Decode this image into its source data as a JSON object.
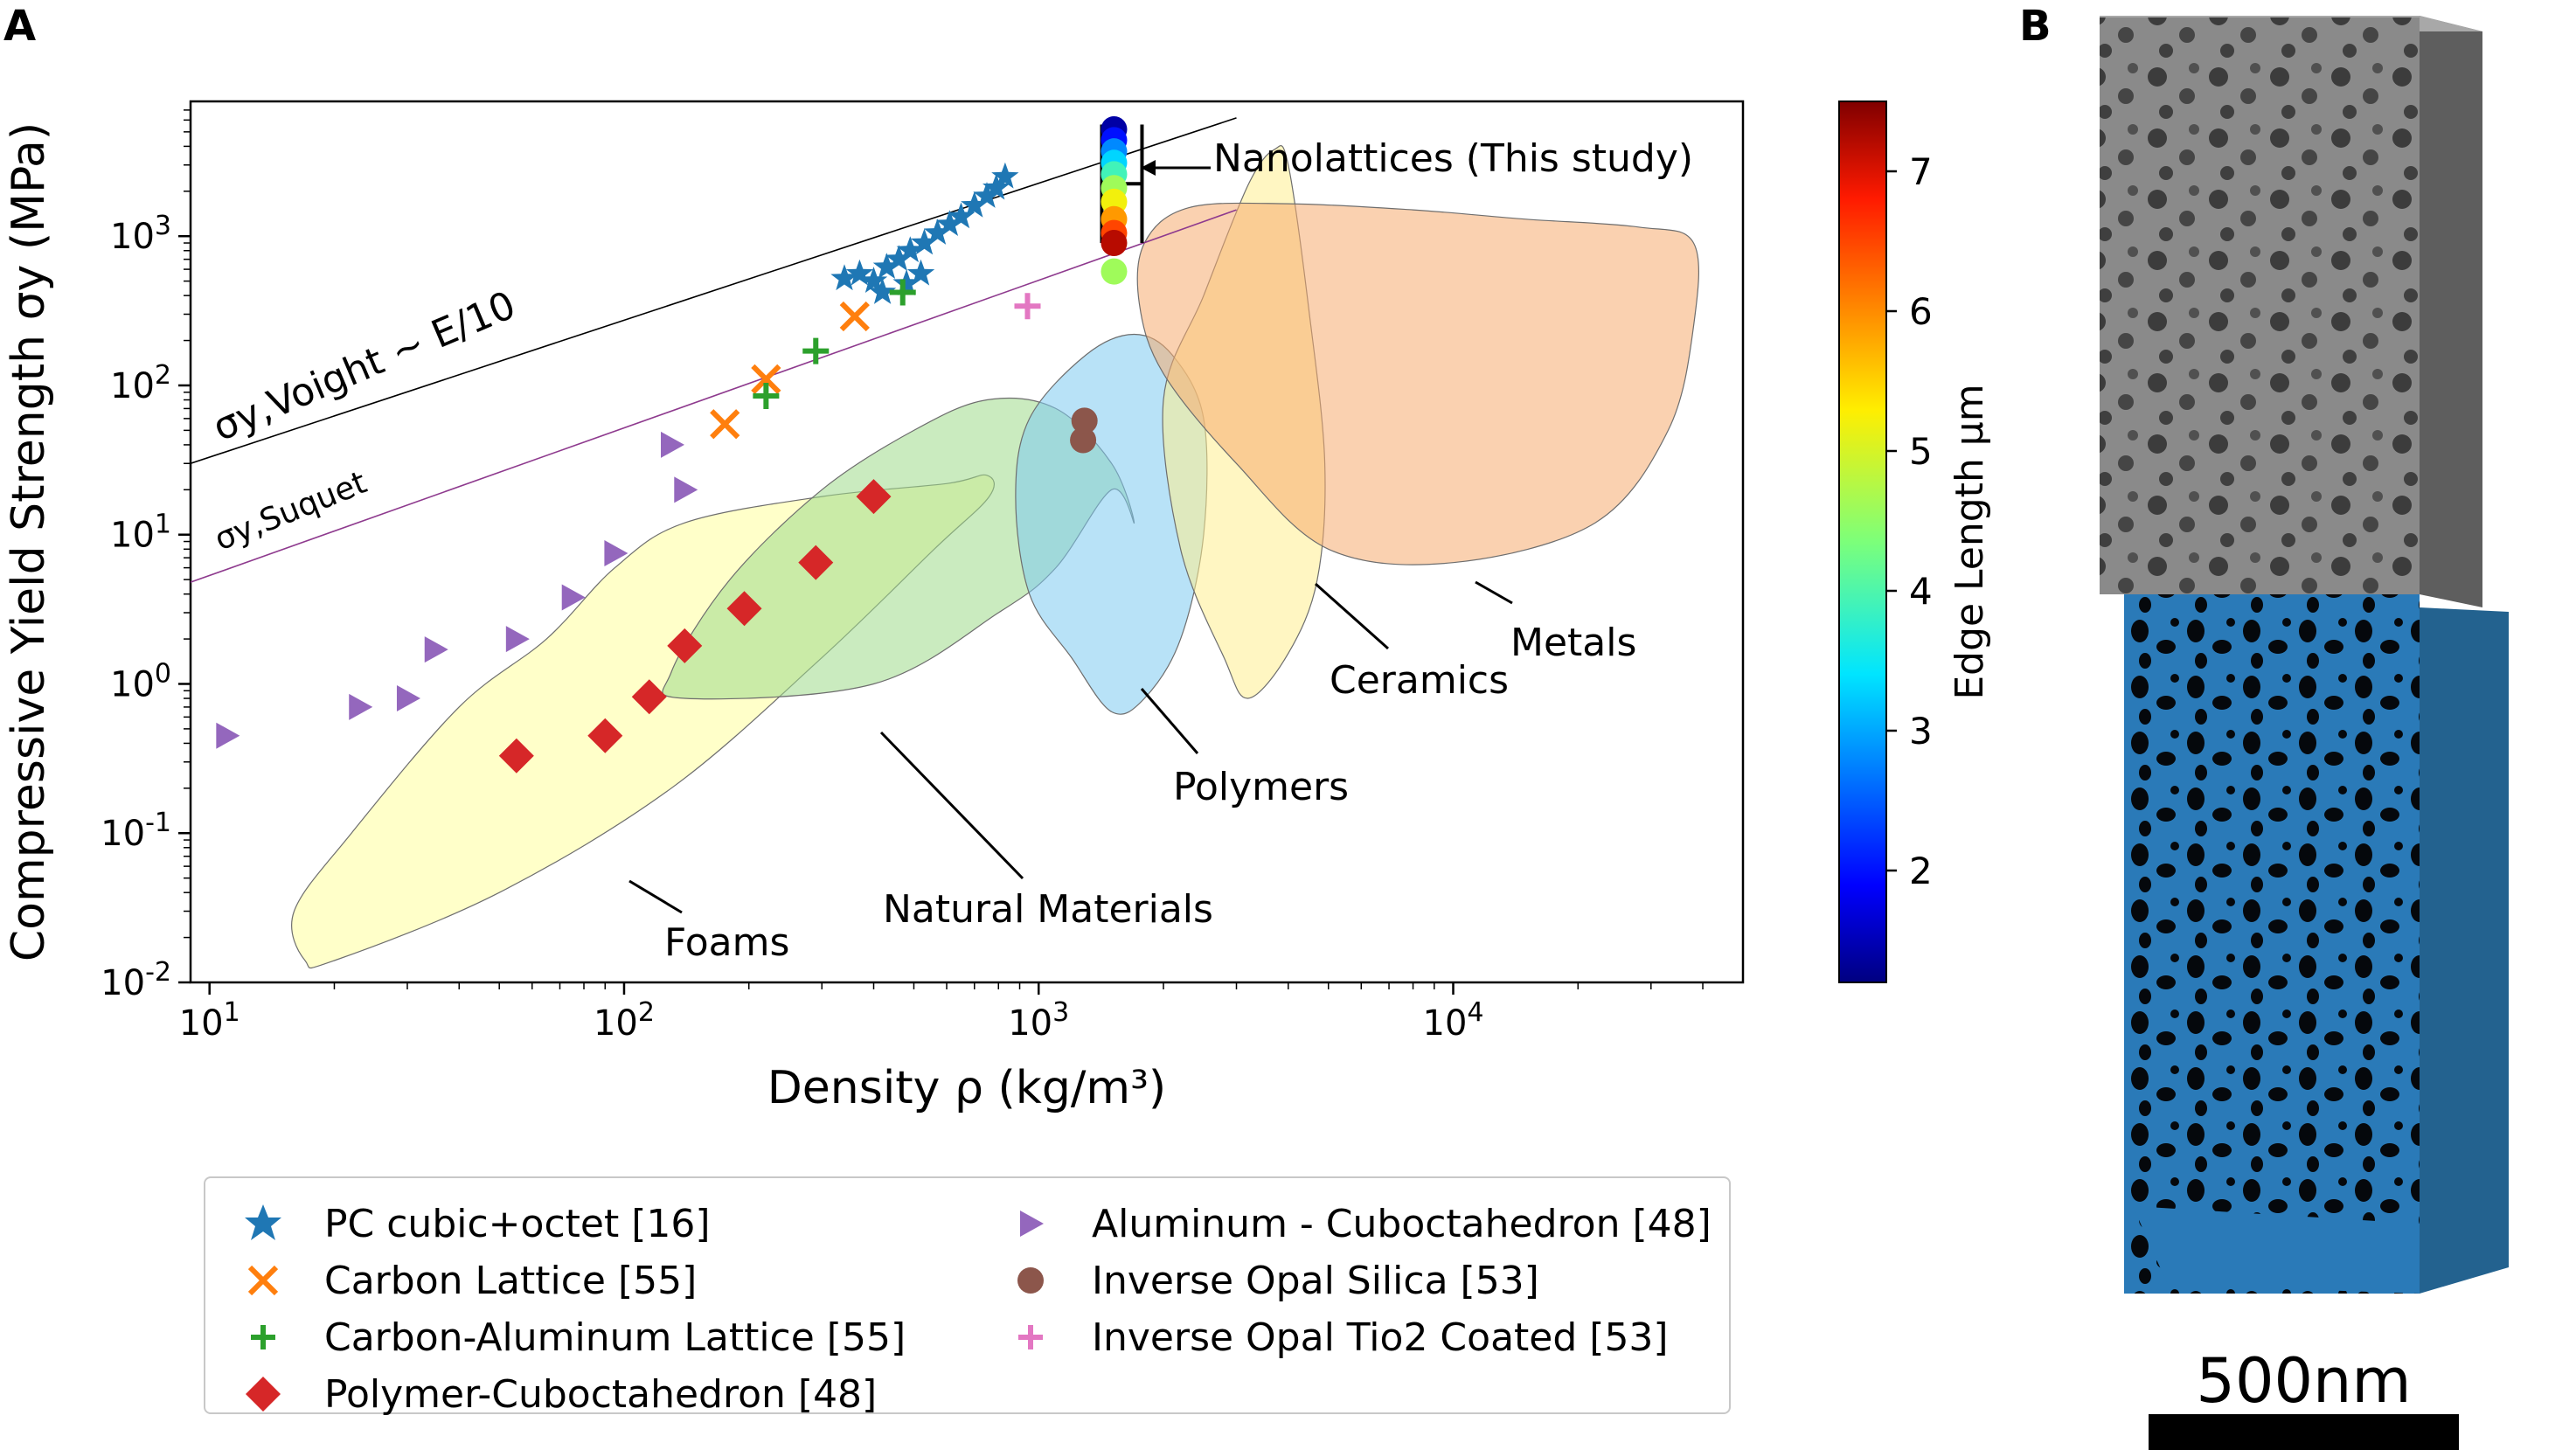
{
  "panels": {
    "a": "A",
    "b": "B"
  },
  "chart_data": {
    "type": "scatter",
    "xlabel": "Density ρ (kg/m³)",
    "ylabel": "Compressive Yield Strength σy (MPa)",
    "xscale": "log",
    "yscale": "log",
    "xlim": [
      9,
      50000
    ],
    "ylim": [
      0.01,
      8000
    ],
    "xticks": [
      10,
      100,
      1000,
      10000
    ],
    "yticks": [
      0.01,
      0.1,
      1,
      10,
      100,
      1000
    ],
    "grid": false,
    "legend_position": "below",
    "series": [
      {
        "name": "PC cubic+octet [16]",
        "marker": "star",
        "color": "#1f77b4",
        "x": [
          340,
          370,
          400,
          430,
          460,
          490,
          530,
          570,
          610,
          650,
          700,
          750,
          790,
          830,
          420,
          480,
          520
        ],
        "y": [
          520,
          560,
          500,
          620,
          700,
          800,
          900,
          1050,
          1200,
          1350,
          1600,
          1850,
          2100,
          2500,
          420,
          480,
          560
        ]
      },
      {
        "name": "Carbon Lattice [55]",
        "marker": "x",
        "color": "#ff7f0e",
        "x": [
          175,
          220,
          360
        ],
        "y": [
          55,
          110,
          290
        ]
      },
      {
        "name": "Carbon-Aluminum Lattice [55]",
        "marker": "plus",
        "color": "#2ca02c",
        "x": [
          220,
          290,
          470
        ],
        "y": [
          85,
          170,
          420
        ]
      },
      {
        "name": "Polymer-Cuboctahedron [48]",
        "marker": "diamond",
        "color": "#d62728",
        "x": [
          55,
          90,
          115,
          140,
          195,
          290,
          400
        ],
        "y": [
          0.33,
          0.45,
          0.82,
          1.8,
          3.2,
          6.5,
          18
        ]
      },
      {
        "name": "Aluminum - Cuboctahedron [48]",
        "marker": "triangle-right",
        "color": "#9467bd",
        "x": [
          11,
          23,
          30,
          35,
          55,
          75,
          95,
          130,
          140
        ],
        "y": [
          0.45,
          0.7,
          0.8,
          1.7,
          2.0,
          3.8,
          7.5,
          40,
          20
        ]
      },
      {
        "name": "Inverse Opal Silica [53]",
        "marker": "circle",
        "color": "#8c564b",
        "x": [
          1280,
          1290
        ],
        "y": [
          43,
          58
        ]
      },
      {
        "name": "Inverse Opal Tio2 Coated [53]",
        "marker": "plus",
        "color": "#e377c2",
        "x": [
          940
        ],
        "y": [
          340
        ]
      }
    ],
    "nanolattices": {
      "x": 1520,
      "y": [
        5200,
        4400,
        3700,
        3100,
        2600,
        2100,
        1700,
        1300,
        1050,
        900,
        580
      ],
      "edge_length": [
        1.4,
        2.0,
        2.8,
        3.3,
        3.9,
        4.6,
        5.2,
        5.9,
        6.5,
        7.2,
        4.6
      ],
      "error_bar": [
        900,
        5600
      ]
    },
    "colorbar": {
      "label": "Edge Length μm",
      "min": 1.2,
      "max": 7.5,
      "ticks": [
        2,
        3,
        4,
        5,
        6,
        7
      ]
    },
    "annotations": {
      "voight": "σy,Voight ~ E/10",
      "suquet": "σy,Suquet",
      "nanolattices": "Nanolattices (This study)",
      "metals": "Metals",
      "ceramics": "Ceramics",
      "polymers": "Polymers",
      "natural": "Natural Materials",
      "foams": "Foams"
    },
    "reference_lines": [
      {
        "name": "voight",
        "x": [
          9,
          3000
        ],
        "y": [
          30,
          6200
        ],
        "color": "#000000"
      },
      {
        "name": "suquet",
        "x": [
          9,
          3000
        ],
        "y": [
          4.8,
          1500
        ],
        "color": "#8e3a8e"
      }
    ],
    "regions": [
      {
        "name": "foams",
        "color": "#ffff9c",
        "pts": [
          [
            17,
            0.014
          ],
          [
            20,
            0.014
          ],
          [
            50,
            0.04
          ],
          [
            130,
            0.2
          ],
          [
            300,
            1.5
          ],
          [
            560,
            8
          ],
          [
            760,
            18
          ],
          [
            750,
            25
          ],
          [
            600,
            22
          ],
          [
            300,
            18
          ],
          [
            140,
            12
          ],
          [
            95,
            6
          ],
          [
            65,
            2
          ],
          [
            40,
            0.7
          ],
          [
            22,
            0.1
          ],
          [
            16,
            0.03
          ]
        ]
      },
      {
        "name": "natural",
        "color": "#9edb8a",
        "pts": [
          [
            140,
            0.8
          ],
          [
            400,
            1.0
          ],
          [
            800,
            3
          ],
          [
            1100,
            6
          ],
          [
            1500,
            20
          ],
          [
            1700,
            12
          ],
          [
            1500,
            30
          ],
          [
            1100,
            70
          ],
          [
            750,
            80
          ],
          [
            500,
            50
          ],
          [
            300,
            20
          ],
          [
            180,
            5
          ],
          [
            130,
            1.2
          ]
        ]
      },
      {
        "name": "polymers",
        "color": "#7ecbf0",
        "pts": [
          [
            950,
            60
          ],
          [
            1300,
            160
          ],
          [
            1700,
            220
          ],
          [
            2100,
            160
          ],
          [
            2500,
            60
          ],
          [
            2500,
            10
          ],
          [
            2200,
            2
          ],
          [
            1800,
            0.8
          ],
          [
            1500,
            0.65
          ],
          [
            1200,
            1.5
          ],
          [
            950,
            4
          ],
          [
            880,
            18
          ]
        ]
      },
      {
        "name": "ceramics",
        "color": "#ffee90",
        "pts": [
          [
            2000,
            80
          ],
          [
            2500,
            400
          ],
          [
            3200,
            2200
          ],
          [
            3700,
            3800
          ],
          [
            4000,
            3000
          ],
          [
            4500,
            300
          ],
          [
            4900,
            30
          ],
          [
            4700,
            5
          ],
          [
            4000,
            1.6
          ],
          [
            3200,
            0.8
          ],
          [
            2800,
            1.5
          ],
          [
            2200,
            8
          ]
        ]
      },
      {
        "name": "metals",
        "color": "#f5ab70",
        "pts": [
          [
            1800,
            900
          ],
          [
            2300,
            1550
          ],
          [
            4000,
            1650
          ],
          [
            8000,
            1500
          ],
          [
            15000,
            1300
          ],
          [
            28000,
            1150
          ],
          [
            38000,
            900
          ],
          [
            38000,
            250
          ],
          [
            33000,
            50
          ],
          [
            22000,
            12
          ],
          [
            10000,
            6.5
          ],
          [
            5000,
            8
          ],
          [
            3000,
            30
          ],
          [
            2000,
            120
          ],
          [
            1750,
            350
          ]
        ]
      }
    ]
  },
  "legend": {
    "col1": [
      "PC cubic+octet [16]",
      "Carbon Lattice [55]",
      "Carbon-Aluminum Lattice [55]",
      "Polymer-Cuboctahedron [48]"
    ],
    "col2": [
      "Aluminum - Cuboctahedron [48]",
      "Inverse Opal Silica [53]",
      "Inverse Opal Tio2 Coated [53]"
    ]
  },
  "scalebar": {
    "label": "500nm"
  }
}
